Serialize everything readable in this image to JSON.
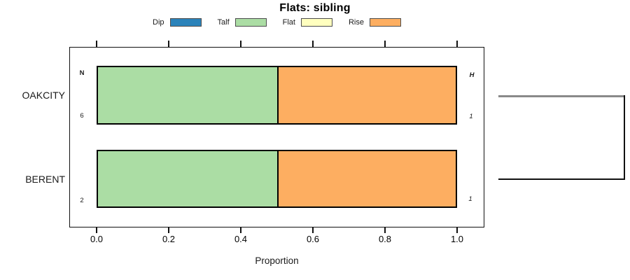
{
  "title": "Flats: sibling",
  "legend": {
    "items": [
      {
        "label": "Dip",
        "color": "#2b83ba"
      },
      {
        "label": "Talf",
        "color": "#abdda4"
      },
      {
        "label": "Flat",
        "color": "#ffffbf"
      },
      {
        "label": "Rise",
        "color": "#fdae61"
      }
    ]
  },
  "axis": {
    "tick_labels": [
      "0.0",
      "0.2",
      "0.4",
      "0.6",
      "0.8",
      "1.0"
    ],
    "xlabel": "Proportion"
  },
  "headers": {
    "left": "N",
    "right": "H"
  },
  "rows": [
    {
      "label": "OAKCITY",
      "n": "6",
      "h": "1"
    },
    {
      "label": "BERENT",
      "n": "2",
      "h": "1"
    }
  ],
  "chart_data": {
    "type": "bar",
    "subtype": "horizontal-stacked-proportion",
    "title": "Flats: sibling",
    "xlabel": "Proportion",
    "xlim": [
      0,
      1
    ],
    "x_ticks": [
      0.0,
      0.2,
      0.4,
      0.6,
      0.8,
      1.0
    ],
    "categories": [
      "OAKCITY",
      "BERENT"
    ],
    "series": [
      {
        "name": "Dip",
        "color": "#2b83ba",
        "values": [
          0,
          0
        ]
      },
      {
        "name": "Talf",
        "color": "#abdda4",
        "values": [
          0.5,
          0.5
        ]
      },
      {
        "name": "Flat",
        "color": "#ffffbf",
        "values": [
          0,
          0
        ]
      },
      {
        "name": "Rise",
        "color": "#fdae61",
        "values": [
          0.5,
          0.5
        ]
      }
    ],
    "row_annotations": {
      "N": [
        6,
        2
      ],
      "H": [
        1,
        1
      ]
    },
    "legend_position": "top",
    "grid": false
  }
}
